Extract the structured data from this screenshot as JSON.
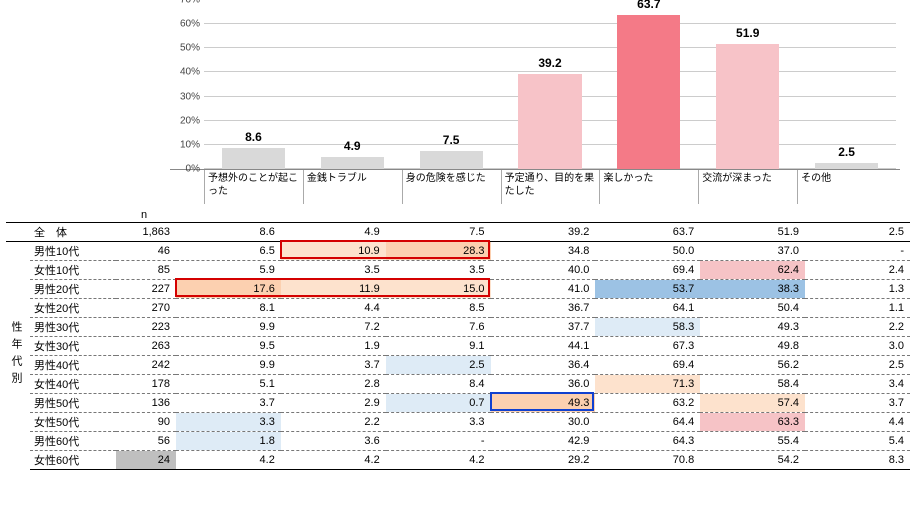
{
  "chart": {
    "type": "bar",
    "ylim": [
      0,
      70
    ],
    "ytick_step": 10,
    "ytick_suffix": "%",
    "grid_color": "#cccccc",
    "axis_color": "#888888",
    "label_fontsize": 10,
    "value_fontsize": 12,
    "categories": [
      "予想外のことが起こった",
      "金銭トラブル",
      "身の危険を感じた",
      "予定通り、目的を果たした",
      "楽しかった",
      "交流が深まった",
      "その他"
    ],
    "values": [
      8.6,
      4.9,
      7.5,
      39.2,
      63.7,
      51.9,
      2.5
    ],
    "bar_colors": [
      "#d9d9d9",
      "#d9d9d9",
      "#d9d9d9",
      "#f7c3c8",
      "#f47a87",
      "#f7c3c8",
      "#d9d9d9"
    ]
  },
  "table": {
    "n_header": "n",
    "side_label": "性年代別",
    "total_label": "全　体",
    "columns": [
      "予想外のことが起こった",
      "金銭トラブル",
      "身の危険を感じた",
      "予定通り、目的を果たした",
      "楽しかった",
      "交流が深まった",
      "その他"
    ],
    "total": {
      "n": "1,863",
      "v": [
        "8.6",
        "4.9",
        "7.5",
        "39.2",
        "63.7",
        "51.9",
        "2.5"
      ]
    },
    "rows": [
      {
        "label": "男性10代",
        "n": "46",
        "v": [
          "6.5",
          "10.9",
          "28.3",
          "34.8",
          "50.0",
          "37.0",
          "-"
        ]
      },
      {
        "label": "女性10代",
        "n": "85",
        "v": [
          "5.9",
          "3.5",
          "3.5",
          "40.0",
          "69.4",
          "62.4",
          "2.4"
        ]
      },
      {
        "label": "男性20代",
        "n": "227",
        "v": [
          "17.6",
          "11.9",
          "15.0",
          "41.0",
          "53.7",
          "38.3",
          "1.3"
        ]
      },
      {
        "label": "女性20代",
        "n": "270",
        "v": [
          "8.1",
          "4.4",
          "8.5",
          "36.7",
          "64.1",
          "50.4",
          "1.1"
        ]
      },
      {
        "label": "男性30代",
        "n": "223",
        "v": [
          "9.9",
          "7.2",
          "7.6",
          "37.7",
          "58.3",
          "49.3",
          "2.2"
        ]
      },
      {
        "label": "女性30代",
        "n": "263",
        "v": [
          "9.5",
          "1.9",
          "9.1",
          "44.1",
          "67.3",
          "49.8",
          "3.0"
        ]
      },
      {
        "label": "男性40代",
        "n": "242",
        "v": [
          "9.9",
          "3.7",
          "2.5",
          "36.4",
          "69.4",
          "56.2",
          "2.5"
        ]
      },
      {
        "label": "女性40代",
        "n": "178",
        "v": [
          "5.1",
          "2.8",
          "8.4",
          "36.0",
          "71.3",
          "58.4",
          "3.4"
        ]
      },
      {
        "label": "男性50代",
        "n": "136",
        "v": [
          "3.7",
          "2.9",
          "0.7",
          "49.3",
          "63.2",
          "57.4",
          "3.7"
        ]
      },
      {
        "label": "女性50代",
        "n": "90",
        "v": [
          "3.3",
          "2.2",
          "3.3",
          "30.0",
          "64.4",
          "63.3",
          "4.4"
        ]
      },
      {
        "label": "男性60代",
        "n": "56",
        "v": [
          "1.8",
          "3.6",
          "-",
          "42.9",
          "64.3",
          "55.4",
          "5.4"
        ]
      },
      {
        "label": "女性60代",
        "n": "24",
        "v": [
          "4.2",
          "4.2",
          "4.2",
          "29.2",
          "70.8",
          "54.2",
          "8.3"
        ]
      }
    ],
    "cell_bg": {
      "0": {
        "1": "#fde2cd",
        "2": "#fcd0b0"
      },
      "1": {
        "5": "#f6c3c6"
      },
      "2": {
        "0": "#fcd0b0",
        "1": "#fde2cd",
        "2": "#fde2cd",
        "4": "#9cc2e4",
        "5": "#9cc2e4"
      },
      "4": {
        "4": "#deebf6"
      },
      "6": {
        "2": "#deebf6"
      },
      "7": {
        "4": "#fde2cd"
      },
      "8": {
        "2": "#deebf6",
        "3": "#fcd0b0",
        "5": "#fde2cd"
      },
      "9": {
        "0": "#deebf6",
        "5": "#f6c3c6"
      },
      "10": {
        "0": "#deebf6"
      },
      "11": {}
    },
    "n_bg": {
      "11": "#bfbfbf"
    },
    "highlight_boxes": [
      {
        "row": 0,
        "col_start": 1,
        "col_span": 2,
        "color": "#d40000"
      },
      {
        "row": 2,
        "col_start": 0,
        "col_span": 3,
        "color": "#d40000"
      },
      {
        "row": 8,
        "col_start": 3,
        "col_span": 1,
        "color": "#1040d0"
      }
    ]
  },
  "colors": {
    "red_box": "#d40000",
    "blue_box": "#1040d0"
  }
}
